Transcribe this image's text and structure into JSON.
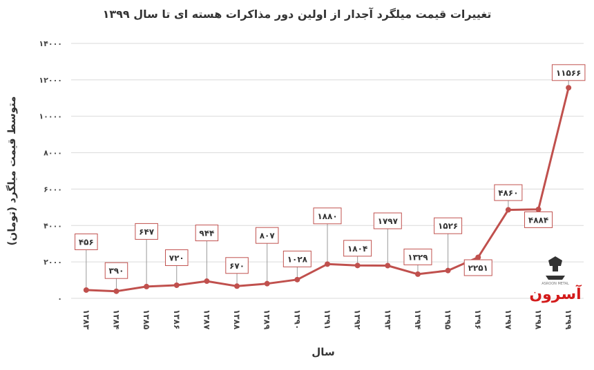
{
  "chart_data": {
    "type": "line",
    "title": "تغییرات قیمت میلگرد آجدار از اولین دور مذاکرات هسته ای تا سال ۱۳۹۹",
    "xlabel": "سال",
    "ylabel": "متوسط قیمت میلگرد (تومان)",
    "ylim": [
      0,
      14000
    ],
    "grid": true,
    "categories": [
      "۱۳۸۳",
      "۱۳۸۴",
      "۱۳۸۵",
      "۱۳۸۶",
      "۱۳۸۷",
      "۱۳۸۸",
      "۱۳۸۹",
      "۱۳۹۰",
      "۱۳۹۱",
      "۱۳۹۲",
      "۱۳۹۳",
      "۱۳۹۴",
      "۱۳۹۵",
      "۱۳۹۶",
      "۱۳۹۷",
      "۱۳۹۸",
      "۱۳۹۹"
    ],
    "yticks": [
      0,
      2000,
      4000,
      6000,
      8000,
      10000,
      12000,
      14000
    ],
    "ytick_labels": [
      "۰",
      "۲۰۰۰",
      "۴۰۰۰",
      "۶۰۰۰",
      "۸۰۰۰",
      "۱۰۰۰۰",
      "۱۲۰۰۰",
      "۱۴۰۰۰"
    ],
    "series": [
      {
        "values": [
          456,
          390,
          647,
          720,
          944,
          670,
          807,
          1028,
          1880,
          1804,
          1797,
          1329,
          1526,
          2251,
          4860,
          4884,
          11566
        ],
        "labels": [
          "۴۵۶",
          "۳۹۰",
          "۶۴۷",
          "۷۲۰",
          "۹۴۴",
          "۶۷۰",
          "۸۰۷",
          "۱۰۲۸",
          "۱۸۸۰",
          "۱۸۰۴",
          "۱۷۹۷",
          "۱۳۲۹",
          "۱۵۲۶",
          "۲۲۵۱",
          "۴۸۶۰",
          "۴۸۸۴",
          "۱۱۵۶۶"
        ]
      }
    ],
    "line_color": "#c0504d",
    "label_border_color": "#c0504d"
  },
  "watermark": {
    "text": "آسرون",
    "subtext": "ASROON METAL"
  }
}
